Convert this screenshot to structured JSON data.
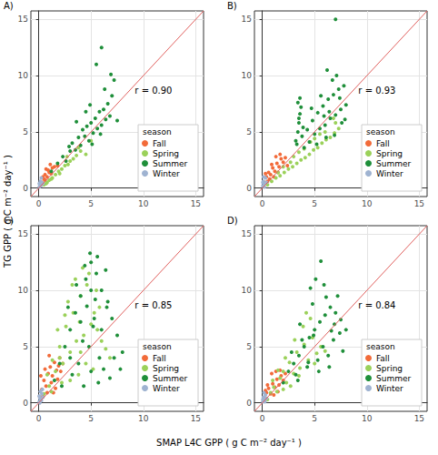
{
  "chart_data": {
    "type": "scatter",
    "xlabel": "SMAP L4C GPP ( g C m⁻² day⁻¹ )",
    "ylabel": "TG GPP ( g C m⁻² day⁻¹ )",
    "xlim": [
      -0.75,
      15.75
    ],
    "ylim": [
      -0.75,
      15.75
    ],
    "xticks": [
      0,
      5,
      10,
      15
    ],
    "yticks": [
      0,
      5,
      10,
      15
    ],
    "grid": true,
    "legend": "lower right",
    "legend_title": "season",
    "marker": "circle",
    "reference_line": {
      "x": [
        -0.75,
        15.75
      ],
      "y": [
        -0.75,
        15.75
      ],
      "color": "#e0605e"
    },
    "panels": [
      {
        "title": "A)",
        "annotation": "r = 0.90",
        "series": [
          {
            "name": "Fall",
            "color": "#f26b3a",
            "x": [
              0.3,
              0.5,
              0.6,
              0.8,
              1.0,
              1.2,
              0.7,
              1.5,
              0.4,
              0.9,
              1.3,
              1.8,
              0.2,
              1.1,
              0.6
            ],
            "y": [
              0.5,
              0.8,
              1.2,
              1.0,
              1.4,
              1.3,
              1.7,
              1.9,
              1.0,
              1.6,
              1.8,
              2.0,
              0.3,
              2.1,
              0.7
            ]
          },
          {
            "name": "Spring",
            "color": "#9bd15a",
            "x": [
              0.5,
              0.8,
              1.0,
              1.3,
              1.6,
              1.9,
              2.2,
              2.5,
              2.8,
              3.0,
              3.3,
              3.6,
              2.0,
              1.2,
              4.0,
              4.5,
              0.7,
              2.7,
              3.8,
              5.0
            ],
            "y": [
              0.3,
              0.5,
              0.7,
              0.9,
              1.2,
              1.5,
              1.7,
              2.0,
              2.1,
              2.4,
              2.6,
              2.9,
              1.3,
              0.8,
              3.3,
              3.0,
              0.4,
              2.8,
              3.6,
              4.2
            ]
          },
          {
            "name": "Summer",
            "color": "#1f8f3a",
            "x": [
              1.2,
              1.8,
              2.3,
              2.6,
              3.0,
              3.2,
              3.5,
              3.8,
              4.0,
              4.2,
              4.4,
              4.6,
              4.8,
              5.0,
              5.2,
              5.4,
              5.6,
              5.8,
              6.0,
              6.2,
              6.4,
              6.6,
              6.8,
              7.0,
              7.2,
              5.5,
              4.5,
              3.6,
              6.0,
              6.9,
              5.1,
              4.9,
              6.3,
              2.9,
              5.9,
              7.5
            ],
            "y": [
              1.5,
              2.2,
              2.8,
              2.4,
              3.3,
              4.0,
              3.4,
              4.5,
              3.8,
              5.2,
              4.6,
              5.5,
              4.2,
              5.8,
              4.9,
              6.2,
              5.3,
              6.8,
              5.6,
              7.0,
              6.1,
              7.5,
              6.4,
              8.2,
              9.6,
              11.0,
              6.8,
              5.9,
              12.5,
              10.1,
              3.9,
              7.4,
              8.8,
              3.7,
              4.8,
              6.0
            ]
          },
          {
            "name": "Winter",
            "color": "#9fb3d1",
            "x": [
              0.05,
              0.1,
              0.2,
              0.3,
              0.15,
              0.4,
              0.05,
              0.25
            ],
            "y": [
              0.1,
              0.3,
              0.2,
              0.5,
              0.6,
              0.4,
              0.4,
              0.9
            ]
          }
        ]
      },
      {
        "title": "B)",
        "annotation": "r = 0.93",
        "series": [
          {
            "name": "Fall",
            "color": "#f26b3a",
            "x": [
              0.2,
              0.4,
              0.6,
              0.8,
              1.0,
              1.2,
              1.4,
              1.6,
              1.8,
              2.0,
              0.5,
              0.9,
              1.3,
              1.7,
              2.2,
              0.3,
              1.1,
              1.5,
              0.7,
              2.4
            ],
            "y": [
              0.5,
              1.0,
              1.4,
              1.2,
              1.8,
              1.5,
              2.2,
              1.9,
              2.6,
              2.3,
              0.6,
              2.1,
              2.8,
              3.0,
              2.7,
              1.3,
              1.0,
              1.4,
              0.8,
              2.0
            ]
          },
          {
            "name": "Spring",
            "color": "#9bd15a",
            "x": [
              0.5,
              0.9,
              1.3,
              1.7,
              2.1,
              2.5,
              2.9,
              3.3,
              3.7,
              4.1,
              4.5,
              4.9,
              5.3,
              5.7,
              6.1,
              6.5,
              6.9,
              7.3,
              2.0,
              3.0,
              4.0,
              5.0,
              6.0,
              7.0,
              1.5,
              3.5,
              5.5,
              6.8,
              4.6,
              2.7
            ],
            "y": [
              0.3,
              0.6,
              0.9,
              1.1,
              1.4,
              1.7,
              1.9,
              2.2,
              2.5,
              2.7,
              3.0,
              3.4,
              3.6,
              4.0,
              4.3,
              4.5,
              4.9,
              5.3,
              1.9,
              2.8,
              3.5,
              4.4,
              5.0,
              5.8,
              1.4,
              3.2,
              4.8,
              6.2,
              4.1,
              2.3
            ]
          },
          {
            "name": "Summer",
            "color": "#1f8f3a",
            "x": [
              3.2,
              3.4,
              3.5,
              3.6,
              3.7,
              3.8,
              3.5,
              3.4,
              3.9,
              4.0,
              4.5,
              5.0,
              5.5,
              6.0,
              6.5,
              7.0,
              7.5,
              8.0,
              4.8,
              5.3,
              5.8,
              6.3,
              6.8,
              7.3,
              7.8,
              5.2,
              6.1,
              6.7,
              7.1,
              7.6,
              4.3,
              5.6,
              6.4,
              7.4,
              6.9,
              5.9,
              7.0,
              6.2,
              4.7,
              3.3,
              3.6,
              7.9
            ],
            "y": [
              4.2,
              5.0,
              5.8,
              6.6,
              7.2,
              4.6,
              6.2,
              7.6,
              5.4,
              3.6,
              4.1,
              4.8,
              5.3,
              5.6,
              6.2,
              6.5,
              7.0,
              7.4,
              6.0,
              6.7,
              7.3,
              7.9,
              8.3,
              8.8,
              9.1,
              3.9,
              4.5,
              9.6,
              10.0,
              5.8,
              5.2,
              8.2,
              6.8,
              8.0,
              4.7,
              6.4,
              15.0,
              10.5,
              7.1,
              3.9,
              8.0,
              6.1
            ]
          },
          {
            "name": "Winter",
            "color": "#9fb3d1",
            "x": [
              0.05,
              0.1,
              0.2,
              0.3,
              0.1,
              0.4,
              0.2,
              0.05
            ],
            "y": [
              0.2,
              0.6,
              0.4,
              0.9,
              1.0,
              0.5,
              0.1,
              0.5
            ]
          }
        ]
      },
      {
        "title": "C)",
        "annotation": "r = 0.85",
        "series": [
          {
            "name": "Fall",
            "color": "#f26b3a",
            "x": [
              0.1,
              0.3,
              0.5,
              0.7,
              0.9,
              1.1,
              1.3,
              1.5,
              1.7,
              1.9,
              2.1,
              0.4,
              0.8,
              1.2,
              1.6,
              2.0,
              0.6,
              1.0,
              1.4,
              1.8,
              0.2,
              2.3
            ],
            "y": [
              0.5,
              1.2,
              2.0,
              1.5,
              2.6,
              3.2,
              2.4,
              3.6,
              2.9,
              3.3,
              2.8,
              0.6,
              0.9,
              1.8,
              1.3,
              4.0,
              3.0,
              4.2,
              0.9,
              2.1,
              2.4,
              3.5
            ]
          },
          {
            "name": "Spring",
            "color": "#9bd15a",
            "x": [
              0.5,
              0.8,
              1.0,
              1.3,
              1.6,
              2.0,
              2.3,
              2.6,
              3.0,
              3.3,
              3.6,
              4.0,
              4.3,
              4.6,
              5.0,
              5.3,
              5.6,
              6.0,
              6.4,
              2.8,
              3.5,
              4.2,
              4.8,
              5.5,
              1.8,
              2.5,
              3.2,
              3.9,
              4.5,
              1.2,
              2.2,
              3.8,
              5.2,
              6.8,
              4.0,
              3.0,
              2.0,
              5.8
            ],
            "y": [
              0.8,
              2.5,
              1.5,
              3.8,
              2.8,
              5.0,
              3.5,
              6.8,
              4.5,
              8.0,
              5.5,
              9.5,
              6.0,
              10.5,
              7.0,
              8.0,
              6.5,
              5.5,
              4.8,
              9.0,
              11.0,
              12.0,
              11.5,
              10.0,
              6.5,
              7.8,
              10.5,
              7.2,
              3.5,
              1.0,
              1.8,
              2.5,
              3.0,
              4.0,
              4.5,
              2.0,
              4.0,
              8.5
            ]
          },
          {
            "name": "Summer",
            "color": "#1f8f3a",
            "x": [
              1.5,
              2.0,
              2.5,
              3.0,
              3.5,
              4.0,
              4.5,
              5.0,
              5.5,
              6.0,
              6.5,
              7.0,
              7.5,
              8.0,
              3.2,
              3.8,
              4.3,
              4.8,
              5.2,
              5.8,
              6.2,
              6.8,
              4.0,
              4.6,
              5.0,
              5.4,
              6.0,
              3.0,
              2.2,
              7.2,
              5.6,
              4.4,
              3.6,
              6.6,
              5.0,
              7.8,
              4.9,
              5.3,
              2.8,
              6.4,
              4.2,
              5.7
            ],
            "y": [
              2.0,
              3.5,
              5.0,
              6.5,
              8.0,
              9.5,
              11.0,
              12.5,
              11.5,
              10.0,
              8.5,
              7.5,
              6.0,
              4.5,
              2.5,
              3.5,
              1.5,
              5.0,
              6.8,
              4.0,
              3.0,
              2.2,
              7.2,
              8.6,
              10.0,
              9.2,
              6.5,
              4.0,
              1.5,
              4.0,
              13.0,
              12.2,
              10.5,
              9.0,
              2.8,
              3.0,
              13.3,
              7.5,
              8.5,
              11.8,
              5.5,
              1.8
            ]
          },
          {
            "name": "Winter",
            "color": "#9fb3d1",
            "x": [
              0.05,
              0.1,
              0.2,
              0.3,
              0.4,
              0.15,
              0.25,
              0.05,
              0.35,
              0.1
            ],
            "y": [
              0.1,
              0.4,
              0.3,
              0.8,
              0.5,
              1.0,
              0.2,
              0.6,
              1.2,
              0.0
            ]
          }
        ]
      },
      {
        "title": "D)",
        "annotation": "r = 0.84",
        "series": [
          {
            "name": "Fall",
            "color": "#f26b3a",
            "x": [
              0.2,
              0.4,
              0.6,
              0.8,
              1.0,
              1.2,
              1.4,
              1.6,
              1.8,
              2.0,
              0.5,
              0.9,
              1.3,
              1.7,
              0.3,
              1.1,
              1.5,
              2.2
            ],
            "y": [
              0.4,
              0.9,
              1.3,
              0.8,
              1.7,
              1.4,
              2.1,
              1.6,
              2.4,
              2.0,
              1.6,
              2.6,
              2.8,
              2.9,
              1.1,
              0.7,
              1.0,
              2.6
            ]
          },
          {
            "name": "Spring",
            "color": "#9bd15a",
            "x": [
              0.5,
              0.8,
              1.1,
              1.4,
              1.7,
              2.0,
              2.3,
              2.6,
              3.0,
              3.3,
              3.6,
              4.0,
              4.4,
              4.8,
              5.2,
              5.6,
              6.0,
              2.2,
              3.1,
              3.9,
              4.6,
              1.5,
              2.7,
              3.5,
              5.0,
              4.2,
              2.0,
              1.0
            ],
            "y": [
              0.3,
              0.9,
              1.4,
              1.0,
              2.2,
              2.8,
              1.8,
              3.6,
              2.6,
              4.5,
              3.1,
              5.2,
              3.8,
              5.8,
              4.4,
              5.0,
              4.6,
              4.0,
              5.6,
              6.8,
              7.5,
              2.9,
              1.5,
              2.4,
              3.5,
              8.0,
              1.2,
              2.0
            ]
          },
          {
            "name": "Summer",
            "color": "#1f8f3a",
            "x": [
              2.0,
              2.5,
              3.0,
              3.5,
              4.0,
              4.5,
              5.0,
              5.5,
              6.0,
              6.5,
              7.0,
              7.5,
              8.0,
              3.2,
              3.8,
              4.3,
              4.8,
              5.3,
              5.8,
              6.3,
              6.8,
              7.2,
              7.7,
              4.6,
              5.1,
              5.6,
              6.1,
              6.6,
              2.8,
              3.6,
              4.4,
              5.9,
              6.9,
              5.4,
              4.9,
              7.4,
              3.4,
              6.4
            ],
            "y": [
              1.8,
              2.8,
              3.5,
              4.2,
              5.0,
              5.8,
              6.5,
              7.2,
              7.8,
              8.5,
              8.0,
              7.4,
              6.5,
              2.5,
              5.6,
              3.2,
              8.8,
              3.8,
              5.0,
              4.2,
              5.6,
              9.5,
              4.6,
              10.2,
              11.0,
              12.6,
              9.4,
              6.4,
              4.5,
              7.0,
              3.6,
              10.5,
              7.0,
              2.8,
              6.0,
              6.2,
              2.0,
              3.2
            ]
          },
          {
            "name": "Winter",
            "color": "#9fb3d1",
            "x": [
              0.05,
              0.1,
              0.2,
              0.3,
              0.15,
              0.4,
              0.25,
              0.05
            ],
            "y": [
              0.1,
              0.5,
              0.3,
              0.7,
              0.9,
              0.4,
              0.1,
              0.3
            ]
          }
        ]
      }
    ]
  }
}
